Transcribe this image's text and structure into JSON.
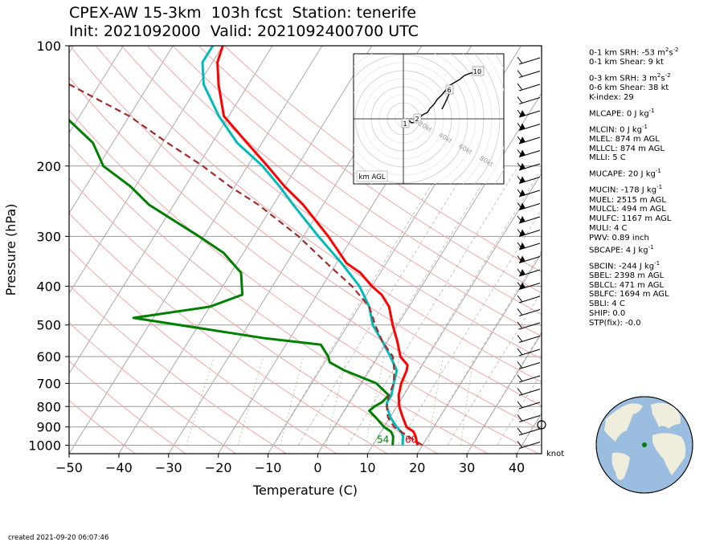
{
  "title": {
    "line1": "CPEX-AW 15-3km  103h fcst  Station: tenerife",
    "line2": "Init: 2021092000  Valid: 2021092400700 UTC"
  },
  "axes": {
    "xlabel": "Temperature (C)",
    "ylabel": "Pressure (hPa)",
    "xticks": [
      -50,
      -40,
      -30,
      -20,
      -10,
      0,
      10,
      20,
      30,
      40
    ],
    "xlim": [
      -50,
      45
    ],
    "yticks": [
      100,
      200,
      300,
      400,
      500,
      600,
      700,
      800,
      900,
      1000
    ],
    "ylim": [
      1050,
      100
    ],
    "skew": 35,
    "ylog": true,
    "isobar_grid": true
  },
  "wind_unit": "knot",
  "created": "created 2021-09-20 06:07:46",
  "indices": [
    {
      "pre": "0-1 km SRH: -53 m",
      "sup": "2",
      "mid": "s",
      "sup2": "-2"
    },
    {
      "pre": "0-1 km Shear: 9 kt"
    },
    {
      "gap": true
    },
    {
      "pre": "0-3 km SRH: 3 m",
      "sup": "2",
      "mid": "s",
      "sup2": "-2"
    },
    {
      "pre": "0-6 km Shear: 38 kt"
    },
    {
      "pre": "K-index: 29"
    },
    {
      "gap": true
    },
    {
      "pre": "MLCAPE: 0 J kg",
      "sup": "-1"
    },
    {
      "gap": true
    },
    {
      "pre": "MLCIN: 0 J kg",
      "sup": "-1"
    },
    {
      "pre": "MLEL: 874 m AGL"
    },
    {
      "pre": "MLLCL: 874 m AGL"
    },
    {
      "pre": "MLLI: 5 C"
    },
    {
      "gap": true
    },
    {
      "pre": "MUCAPE: 20 J kg",
      "sup": "-1"
    },
    {
      "gap": true
    },
    {
      "pre": "MUCIN: -178 J kg",
      "sup": "-1"
    },
    {
      "pre": "MUEL: 2515 m AGL"
    },
    {
      "pre": "MULCL: 494 m AGL"
    },
    {
      "pre": "MULFC: 1167 m AGL"
    },
    {
      "pre": "MULI: 4 C"
    },
    {
      "pre": "PWV: 0.89 inch"
    },
    {
      "pre": "SBCAPE: 4 J kg",
      "sup": "-1"
    },
    {
      "gap": true
    },
    {
      "pre": "SBCIN: -244 J kg",
      "sup": "-1"
    },
    {
      "pre": "SBEL: 2398 m AGL"
    },
    {
      "pre": "SBLCL: 471 m AGL"
    },
    {
      "pre": "SBLFC: 1694 m AGL"
    },
    {
      "pre": "SBLI: 4 C"
    },
    {
      "pre": "SHIP: 0.0"
    },
    {
      "pre": "STP(fix): -0.0"
    }
  ],
  "chart_data": {
    "type": "line",
    "series": [
      {
        "color": "#ff0000",
        "points": [
          [
            1000,
            19
          ],
          [
            950,
            17.5
          ],
          [
            925,
            16.5
          ],
          [
            900,
            14.5
          ],
          [
            850,
            12.5
          ],
          [
            800,
            10.5
          ],
          [
            750,
            9
          ],
          [
            700,
            8
          ],
          [
            650,
            7.5
          ],
          [
            630,
            7
          ],
          [
            600,
            4.5
          ],
          [
            550,
            2
          ],
          [
            500,
            -1
          ],
          [
            450,
            -4
          ],
          [
            420,
            -7
          ],
          [
            400,
            -10
          ],
          [
            370,
            -14
          ],
          [
            350,
            -18
          ],
          [
            300,
            -25
          ],
          [
            250,
            -34
          ],
          [
            225,
            -40
          ],
          [
            200,
            -46
          ],
          [
            175,
            -53
          ],
          [
            150,
            -61
          ],
          [
            125,
            -66
          ],
          [
            110,
            -69
          ],
          [
            100,
            -70
          ]
        ]
      },
      {
        "color": "#00bbbb",
        "points": [
          [
            1000,
            16
          ],
          [
            950,
            15
          ],
          [
            925,
            14
          ],
          [
            900,
            12.5
          ],
          [
            850,
            10
          ],
          [
            800,
            8
          ],
          [
            780,
            7.5
          ],
          [
            750,
            7.5
          ],
          [
            700,
            6.5
          ],
          [
            650,
            5.5
          ],
          [
            600,
            2.5
          ],
          [
            550,
            -1
          ],
          [
            500,
            -5
          ],
          [
            450,
            -8
          ],
          [
            400,
            -12.5
          ],
          [
            350,
            -19
          ],
          [
            300,
            -27
          ],
          [
            250,
            -36
          ],
          [
            225,
            -41
          ],
          [
            200,
            -47
          ],
          [
            175,
            -55
          ],
          [
            150,
            -62
          ],
          [
            125,
            -69
          ],
          [
            110,
            -72
          ],
          [
            100,
            -72
          ]
        ]
      },
      {
        "color": "#008000",
        "points": [
          [
            1000,
            14
          ],
          [
            950,
            13
          ],
          [
            925,
            12
          ],
          [
            900,
            10
          ],
          [
            850,
            7
          ],
          [
            820,
            5
          ],
          [
            800,
            5.5
          ],
          [
            780,
            6.5
          ],
          [
            750,
            7
          ],
          [
            700,
            3
          ],
          [
            650,
            -5
          ],
          [
            620,
            -9
          ],
          [
            600,
            -10
          ],
          [
            560,
            -13
          ],
          [
            540,
            -25
          ],
          [
            480,
            -54
          ],
          [
            450,
            -40
          ],
          [
            420,
            -35
          ],
          [
            370,
            -38
          ],
          [
            330,
            -44
          ],
          [
            300,
            -51
          ],
          [
            250,
            -65
          ],
          [
            225,
            -71
          ],
          [
            200,
            -79
          ],
          [
            175,
            -84
          ],
          [
            150,
            -93
          ],
          [
            125,
            -99
          ],
          [
            110,
            -103
          ],
          [
            100,
            -103
          ]
        ]
      },
      {
        "color": "#a52a2a",
        "dashed": true,
        "points": [
          [
            1000,
            20
          ],
          [
            950,
            16
          ],
          [
            925,
            14
          ],
          [
            900,
            12
          ],
          [
            850,
            9.5
          ],
          [
            800,
            8
          ],
          [
            750,
            7
          ],
          [
            700,
            6.5
          ],
          [
            650,
            5
          ],
          [
            600,
            3
          ],
          [
            550,
            -1
          ],
          [
            500,
            -4.5
          ],
          [
            450,
            -8
          ],
          [
            400,
            -14
          ],
          [
            350,
            -22
          ],
          [
            300,
            -31
          ],
          [
            250,
            -43
          ],
          [
            225,
            -51
          ],
          [
            200,
            -59
          ],
          [
            175,
            -69
          ],
          [
            150,
            -80
          ],
          [
            125,
            -96
          ],
          [
            110,
            -104
          ],
          [
            100,
            -114
          ]
        ]
      }
    ],
    "surface_labels": [
      {
        "text": "54",
        "color": "#008000",
        "temp": 14,
        "p": 1000
      },
      {
        "text": "60",
        "color": "#ff0000",
        "temp": 19,
        "p": 1000
      }
    ],
    "hodograph": {
      "label": "km AGL",
      "ring_labels": [
        "20kt",
        "40kt",
        "60kt",
        "80kt"
      ],
      "height_labels": [
        "1",
        "2",
        "6",
        "10"
      ],
      "points_uv": [
        [
          2,
          4
        ],
        [
          4,
          2
        ],
        [
          8,
          3
        ],
        [
          10,
          5
        ],
        [
          16,
          6
        ],
        [
          18,
          10
        ],
        [
          24,
          16
        ],
        [
          26,
          20
        ],
        [
          30,
          30
        ],
        [
          34,
          36
        ],
        [
          38,
          40
        ],
        [
          40,
          42
        ],
        [
          44,
          42
        ],
        [
          50,
          42
        ]
      ]
    },
    "globe_marker": "green dot"
  }
}
